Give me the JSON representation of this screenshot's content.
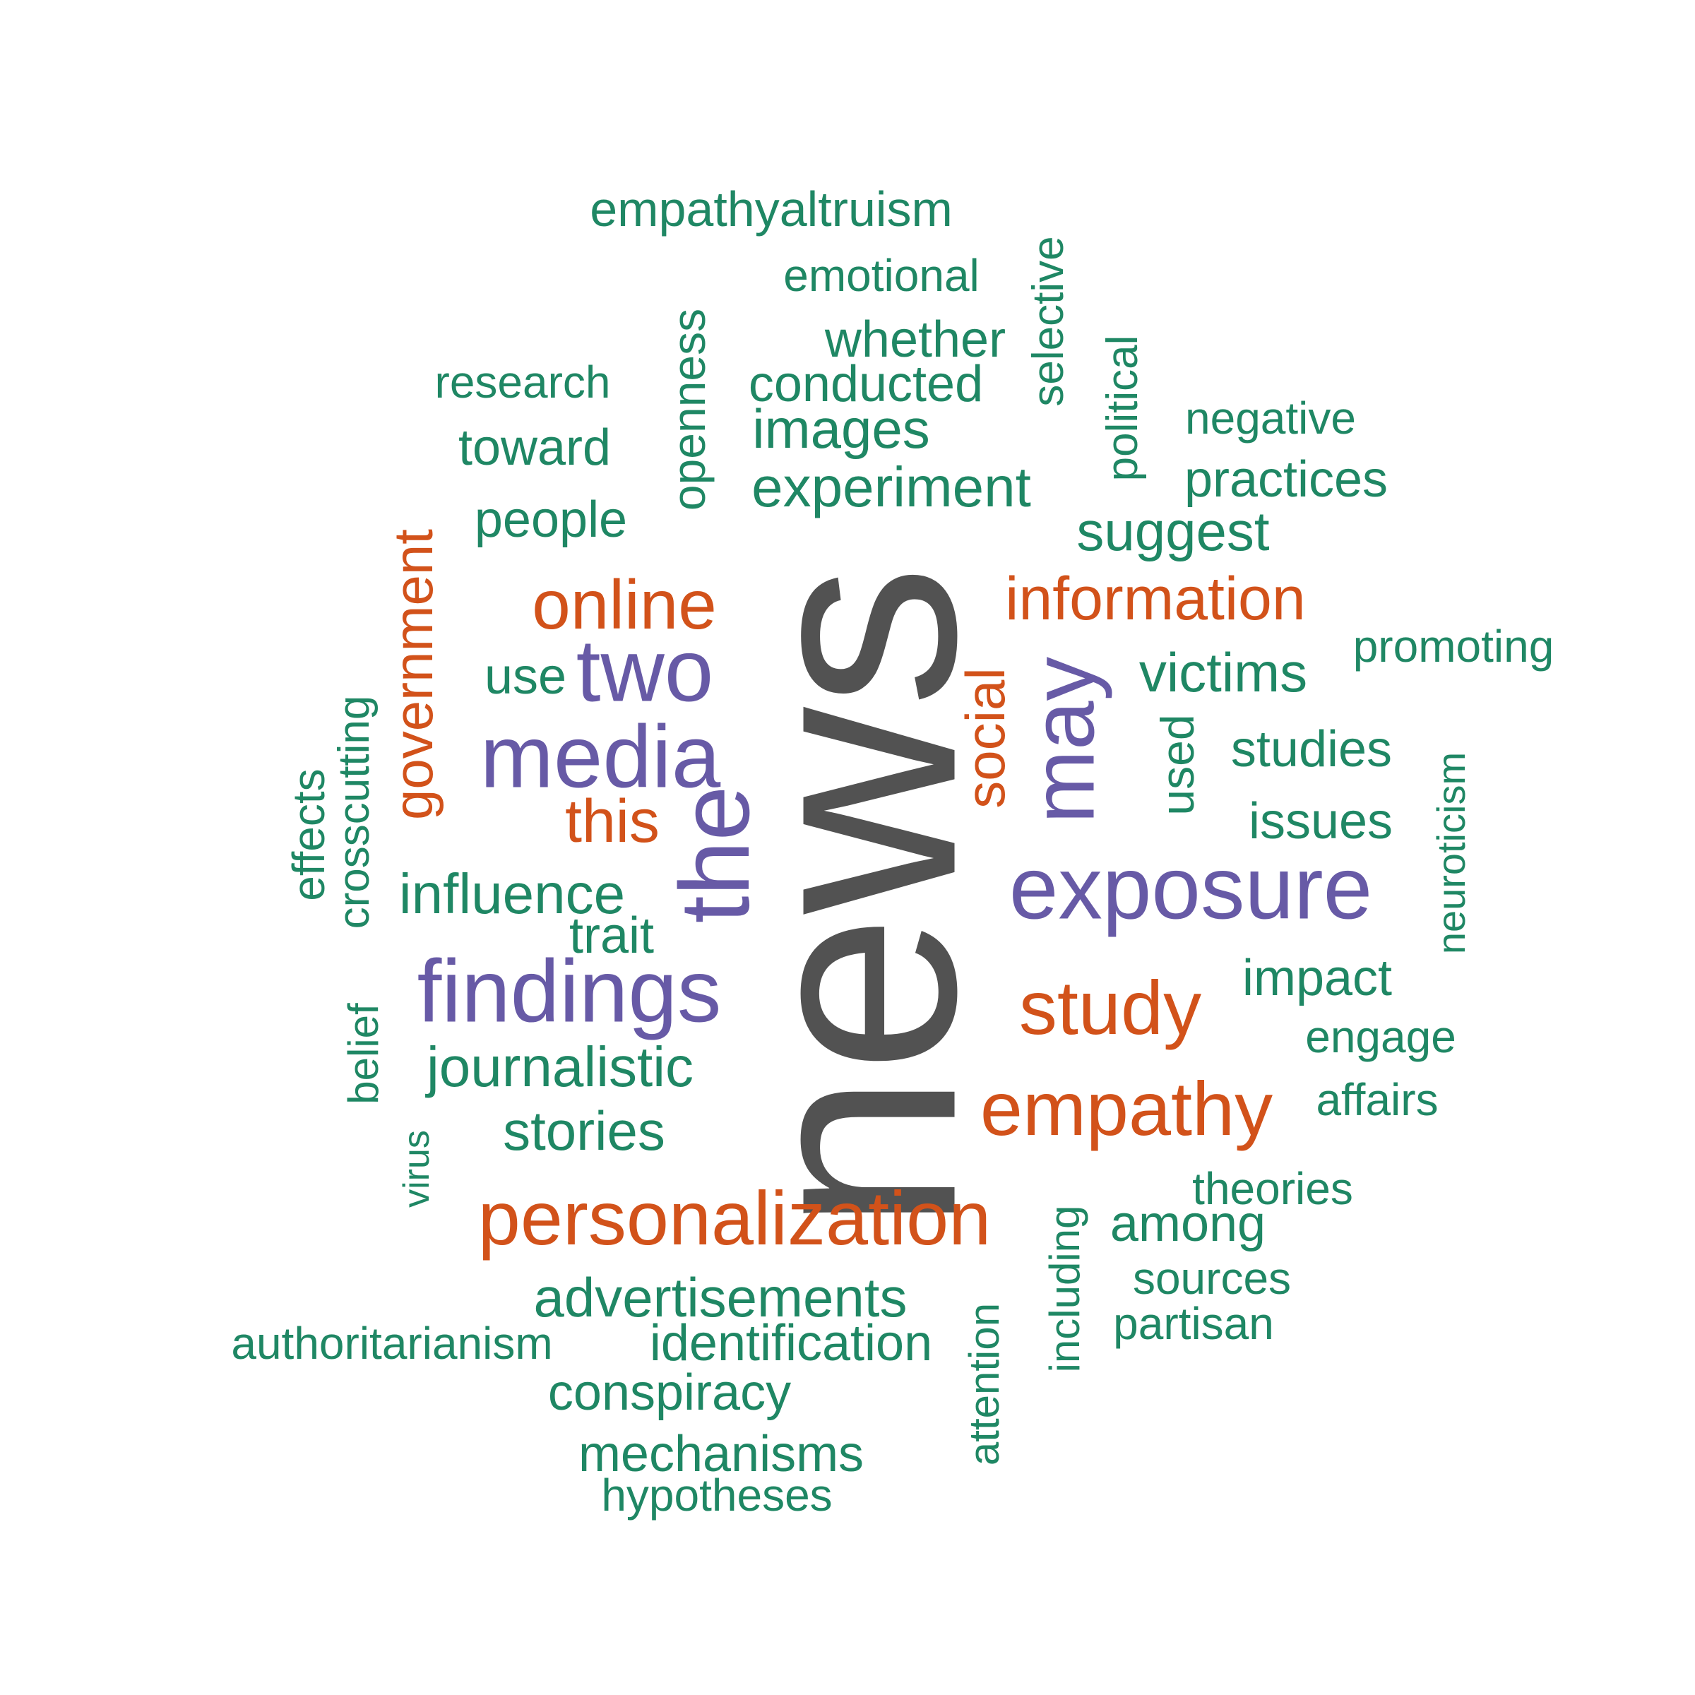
{
  "palette": {
    "dark": "#525252",
    "purple": "#675aa6",
    "orange": "#d2521a",
    "green": "#1f8764"
  },
  "words": {
    "news": "news",
    "exposure": "exposure",
    "findings": "findings",
    "media": "media",
    "the": "the",
    "may": "may",
    "two": "two",
    "personalization": "personalization",
    "empathy": "empathy",
    "study": "study",
    "online": "online",
    "information": "information",
    "government": "government",
    "social": "social",
    "this": "this",
    "empathyaltruism": "empathyaltruism",
    "emotional": "emotional",
    "whether": "whether",
    "selective": "selective",
    "conducted": "conducted",
    "research": "research",
    "openness": "openness",
    "images": "images",
    "political": "political",
    "negative": "negative",
    "toward": "toward",
    "practices": "practices",
    "experiment": "experiment",
    "people": "people",
    "suggest": "suggest",
    "promoting": "promoting",
    "victims": "victims",
    "use": "use",
    "used": "used",
    "studies": "studies",
    "crosscutting": "crosscutting",
    "effects": "effects",
    "neuroticism": "neuroticism",
    "issues": "issues",
    "influence": "influence",
    "trait": "trait",
    "impact": "impact",
    "engage": "engage",
    "belief": "belief",
    "journalistic": "journalistic",
    "affairs": "affairs",
    "stories": "stories",
    "virus": "virus",
    "theories": "theories",
    "among": "among",
    "including": "including",
    "sources": "sources",
    "advertisements": "advertisements",
    "partisan": "partisan",
    "authoritarianism": "authoritarianism",
    "identification": "identification",
    "attention": "attention",
    "conspiracy": "conspiracy",
    "mechanisms": "mechanisms",
    "hypotheses": "hypotheses"
  }
}
